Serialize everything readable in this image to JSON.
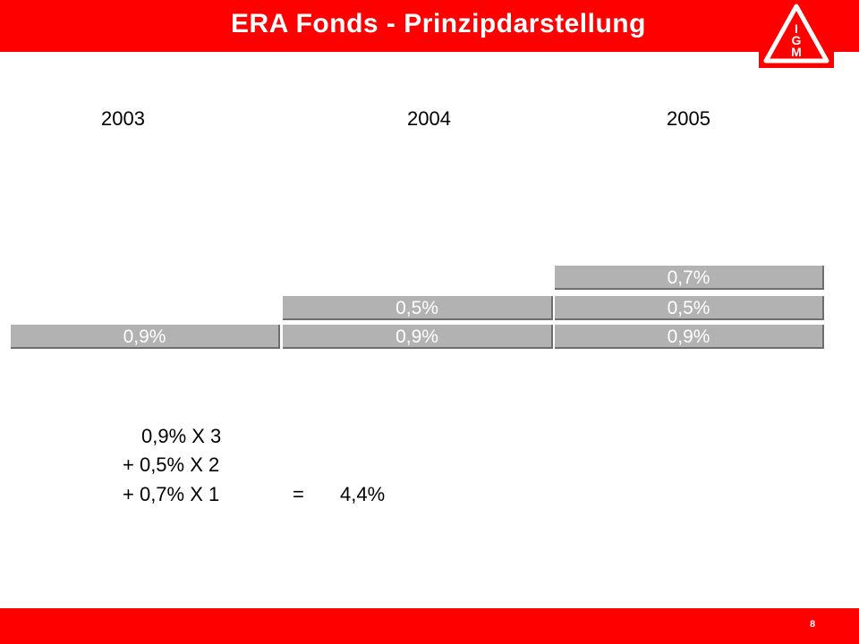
{
  "header": {
    "title": "ERA Fonds - Prinzipdarstellung",
    "logo_text": "IGM"
  },
  "footer": {
    "page_number": "8"
  },
  "colors": {
    "brand_red": "#ff0000",
    "block_fill": "#b2b2b2",
    "block_shadow": "#6e6e6e"
  },
  "years": [
    "2003",
    "2004",
    "2005"
  ],
  "blocks": {
    "y2003": {
      "base": "0,9%"
    },
    "y2004": {
      "base": "0,9%",
      "second": "0,5%"
    },
    "y2005": {
      "base": "0,9%",
      "second": "0,5%",
      "third": "0,7%"
    }
  },
  "formula": {
    "line1": "0,9% X 3",
    "line2": "+ 0,5% X 2",
    "line3": "+ 0,7% X 1",
    "equals": "=",
    "result": "4,4%"
  }
}
